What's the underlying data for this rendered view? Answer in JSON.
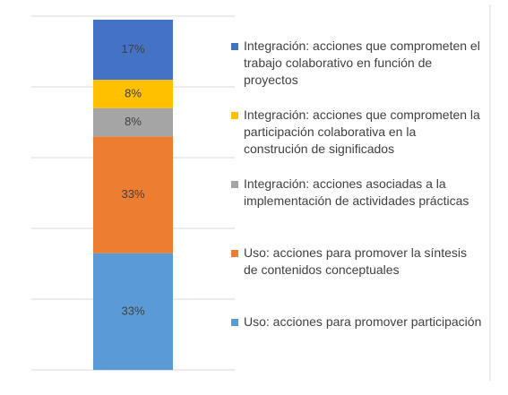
{
  "chart_data": {
    "type": "stacked_bar",
    "categories": [
      null
    ],
    "ylim": [
      0,
      100
    ],
    "yticks": [
      0,
      20,
      40,
      60,
      80,
      100
    ],
    "grid": true,
    "series": [
      {
        "name": "Uso: acciones para promover participación",
        "color": "#5b9bd5",
        "values": [
          33
        ],
        "value_labels": [
          "33%"
        ]
      },
      {
        "name": "Uso: acciones para promover la síntesis de contenidos conceptuales",
        "color": "#ed7d31",
        "values": [
          33
        ],
        "value_labels": [
          "33%"
        ]
      },
      {
        "name": "Integración: acciones asociadas a la implementación de actividades prácticas",
        "color": "#a5a5a5",
        "values": [
          8
        ],
        "value_labels": [
          "8%"
        ]
      },
      {
        "name": "Integración: acciones que comprometen la participación colaborativa en la construción de significados",
        "color": "#ffc000",
        "values": [
          8
        ],
        "value_labels": [
          "8%"
        ]
      },
      {
        "name": "Integración: acciones que comprometen el trabajo colaborativo en función de proyectos",
        "color": "#4472c4",
        "values": [
          17
        ],
        "value_labels": [
          "17%"
        ]
      }
    ],
    "legend": "right"
  }
}
